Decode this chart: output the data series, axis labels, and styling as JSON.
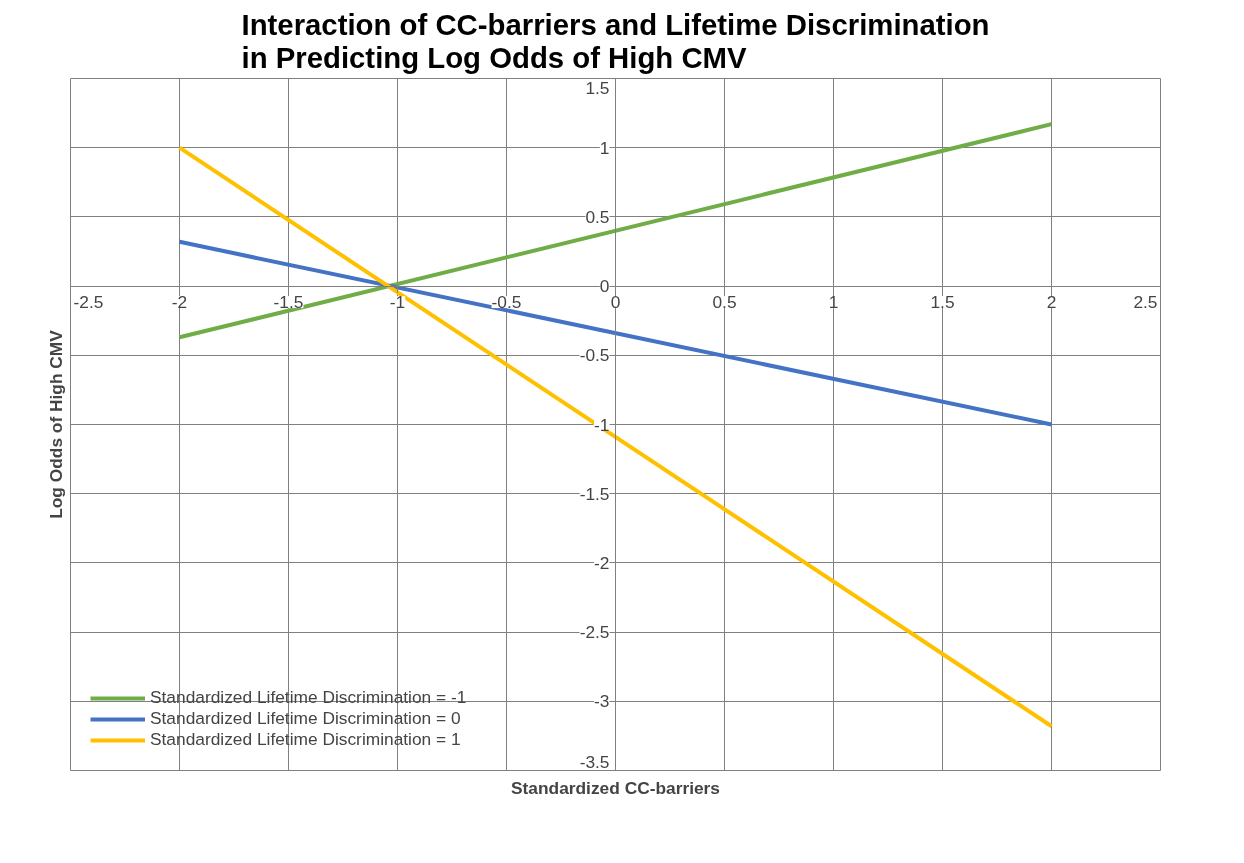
{
  "chart_data": {
    "type": "line",
    "title": "Interaction of CC-barriers and Lifetime Discrimination in Predicting Log Odds of High CMV",
    "xlabel": "Standardized CC-barriers",
    "ylabel": "Log Odds of High CMV",
    "x": [
      -2,
      2
    ],
    "series": [
      {
        "name": "Standardized Lifetime Discrimination = -1",
        "color": "#70ad47",
        "values": [
          -0.37,
          1.17
        ]
      },
      {
        "name": "Standardized Lifetime Discrimination = 0",
        "color": "#4472c4",
        "values": [
          0.32,
          -1.0
        ]
      },
      {
        "name": "Standardized Lifetime Discrimination = 1",
        "color": "#ffc000",
        "values": [
          1.0,
          -3.18
        ]
      }
    ],
    "xlim": [
      -2.5,
      2.5
    ],
    "xticks": [
      -2.5,
      -2,
      -1.5,
      -1,
      -0.5,
      0,
      0.5,
      1,
      1.5,
      2,
      2.5
    ],
    "ylim": [
      -3.5,
      1.5
    ],
    "yticks": [
      -3.5,
      -3,
      -2.5,
      -2,
      -1.5,
      -1,
      -0.5,
      0,
      0.5,
      1,
      1.5
    ],
    "grid": true,
    "legend": "bottom left",
    "marker": "none",
    "line_style": "solid"
  }
}
